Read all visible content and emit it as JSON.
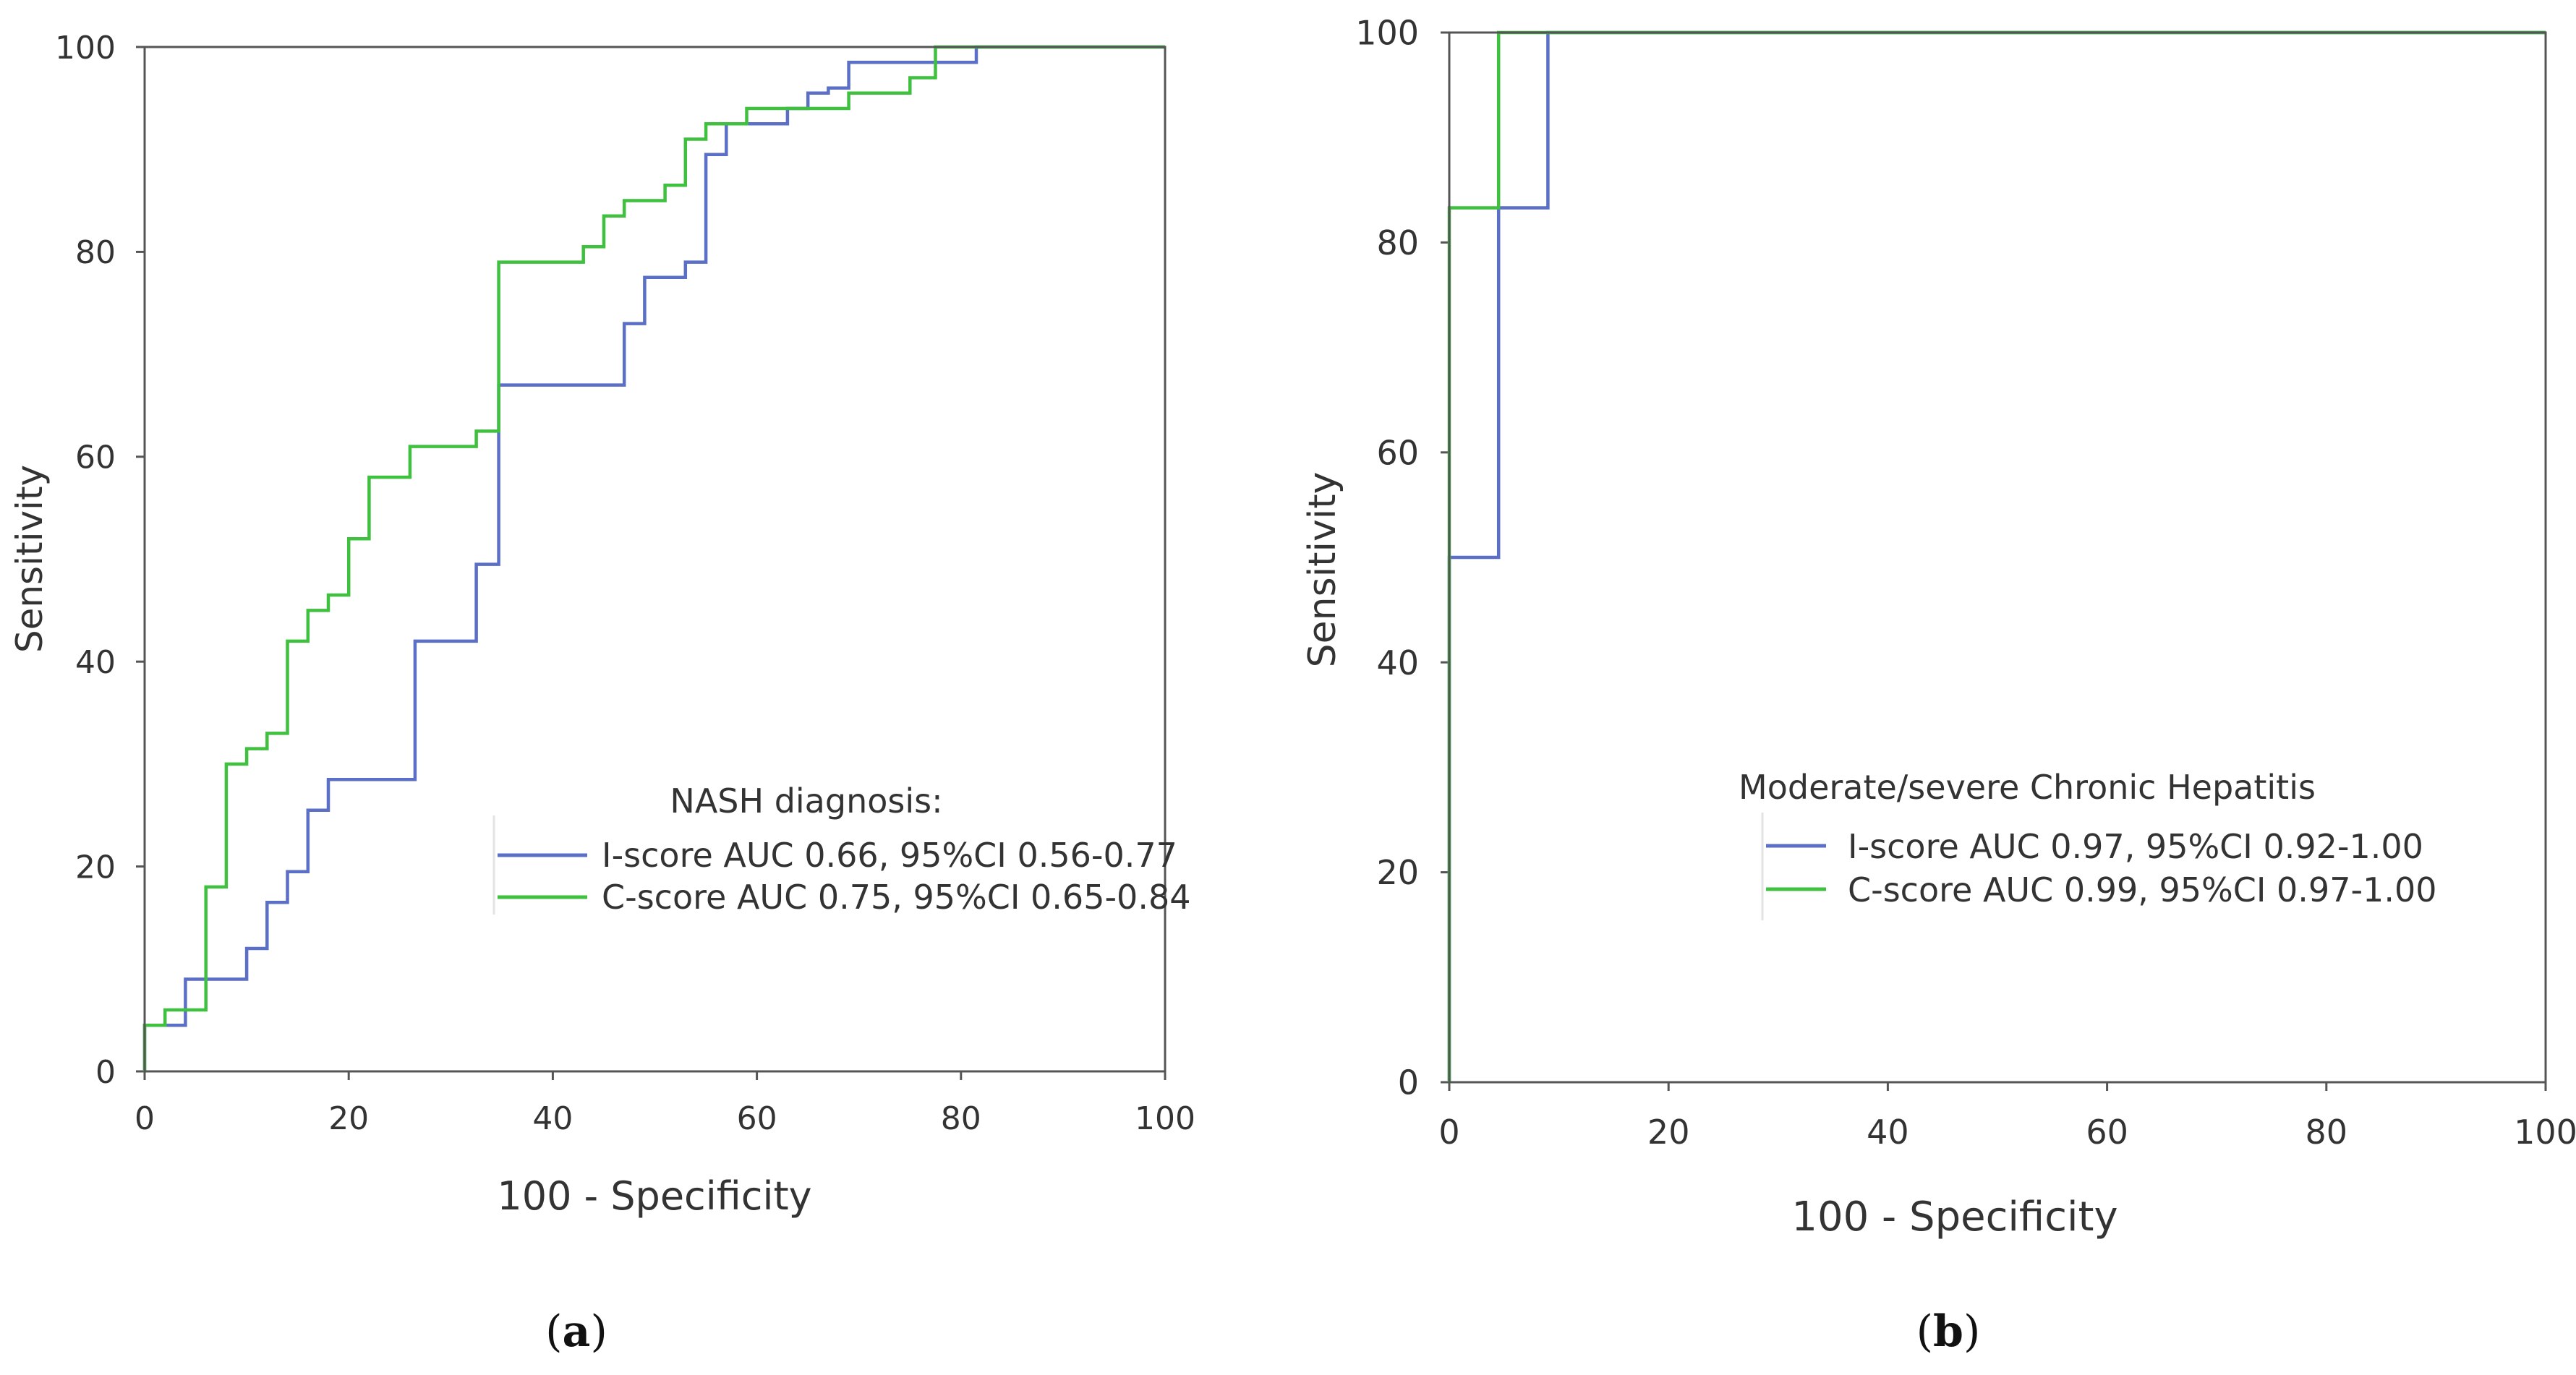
{
  "chart_data": [
    {
      "type": "line",
      "panel_label": "a",
      "xlabel": "100 - Specificity",
      "ylabel": "Sensitivity",
      "xlim": [
        0,
        100
      ],
      "ylim": [
        0,
        100
      ],
      "xticks": [
        "0",
        "20",
        "40",
        "60",
        "80",
        "100"
      ],
      "yticks": [
        "0",
        "20",
        "40",
        "60",
        "80",
        "100"
      ],
      "legend_title": "NASH diagnosis:",
      "legend_position": "lower-right",
      "series": [
        {
          "name": "I-score AUC 0.66, 95%CI 0.56-0.77",
          "color": "#5b6fc7",
          "step_points": [
            [
              0,
              0
            ],
            [
              0,
              4.5
            ],
            [
              4,
              4.5
            ],
            [
              4,
              9
            ],
            [
              10,
              9
            ],
            [
              10,
              12
            ],
            [
              12,
              12
            ],
            [
              12,
              16.5
            ],
            [
              14,
              16.5
            ],
            [
              14,
              19.5
            ],
            [
              16,
              19.5
            ],
            [
              16,
              25.5
            ],
            [
              18,
              25.5
            ],
            [
              18,
              28.5
            ],
            [
              26.5,
              28.5
            ],
            [
              26.5,
              42
            ],
            [
              32.5,
              42
            ],
            [
              32.5,
              49.5
            ],
            [
              34.7,
              49.5
            ],
            [
              34.7,
              67
            ],
            [
              47,
              67
            ],
            [
              47,
              73
            ],
            [
              49,
              73
            ],
            [
              49,
              77.5
            ],
            [
              53,
              77.5
            ],
            [
              53,
              79
            ],
            [
              55,
              79
            ],
            [
              55,
              89.5
            ],
            [
              57,
              89.5
            ],
            [
              57,
              92.5
            ],
            [
              63,
              92.5
            ],
            [
              63,
              94
            ],
            [
              65,
              94
            ],
            [
              65,
              95.5
            ],
            [
              67,
              95.5
            ],
            [
              67,
              96
            ],
            [
              69,
              96
            ],
            [
              69,
              98.5
            ],
            [
              81.5,
              98.5
            ],
            [
              81.5,
              100
            ],
            [
              100,
              100
            ]
          ]
        },
        {
          "name": "C-score AUC 0.75, 95%CI 0.65-0.84",
          "color": "#3fc03f",
          "step_points": [
            [
              0,
              0
            ],
            [
              0,
              4.5
            ],
            [
              2,
              4.5
            ],
            [
              2,
              6
            ],
            [
              6,
              6
            ],
            [
              6,
              18
            ],
            [
              8,
              18
            ],
            [
              8,
              30
            ],
            [
              10,
              30
            ],
            [
              10,
              31.5
            ],
            [
              12,
              31.5
            ],
            [
              12,
              33
            ],
            [
              14,
              33
            ],
            [
              14,
              42
            ],
            [
              16,
              42
            ],
            [
              16,
              45
            ],
            [
              18,
              45
            ],
            [
              18,
              46.5
            ],
            [
              20,
              46.5
            ],
            [
              20,
              52
            ],
            [
              22,
              52
            ],
            [
              22,
              58
            ],
            [
              26,
              58
            ],
            [
              26,
              61
            ],
            [
              32.5,
              61
            ],
            [
              32.5,
              62.5
            ],
            [
              34.7,
              62.5
            ],
            [
              34.7,
              79
            ],
            [
              43,
              79
            ],
            [
              43,
              80.5
            ],
            [
              45,
              80.5
            ],
            [
              45,
              83.5
            ],
            [
              47,
              83.5
            ],
            [
              47,
              85
            ],
            [
              51,
              85
            ],
            [
              51,
              86.5
            ],
            [
              53,
              86.5
            ],
            [
              53,
              91
            ],
            [
              55,
              91
            ],
            [
              55,
              92.5
            ],
            [
              59,
              92.5
            ],
            [
              59,
              94
            ],
            [
              69,
              94
            ],
            [
              69,
              95.5
            ],
            [
              75,
              95.5
            ],
            [
              75,
              97
            ],
            [
              77.5,
              97
            ],
            [
              77.5,
              100
            ],
            [
              100,
              100
            ]
          ]
        }
      ]
    },
    {
      "type": "line",
      "panel_label": "b",
      "xlabel": "100 - Specificity",
      "ylabel": "Sensitivity",
      "xlim": [
        0,
        100
      ],
      "ylim": [
        0,
        100
      ],
      "xticks": [
        "0",
        "20",
        "40",
        "60",
        "80",
        "100"
      ],
      "yticks": [
        "0",
        "20",
        "40",
        "60",
        "80",
        "100"
      ],
      "legend_title": "Moderate/severe Chronic Hepatitis",
      "legend_position": "lower-right",
      "series": [
        {
          "name": "I-score AUC 0.97, 95%CI 0.92-1.00",
          "color": "#5b6fc7",
          "step_points": [
            [
              0,
              0
            ],
            [
              0,
              50
            ],
            [
              4.5,
              50
            ],
            [
              4.5,
              83.3
            ],
            [
              9,
              83.3
            ],
            [
              9,
              100
            ],
            [
              100,
              100
            ]
          ]
        },
        {
          "name": "C-score AUC 0.99, 95%CI 0.97-1.00",
          "color": "#3fc03f",
          "step_points": [
            [
              0,
              0
            ],
            [
              0,
              83.3
            ],
            [
              4.5,
              83.3
            ],
            [
              4.5,
              100
            ],
            [
              100,
              100
            ]
          ]
        }
      ]
    }
  ]
}
